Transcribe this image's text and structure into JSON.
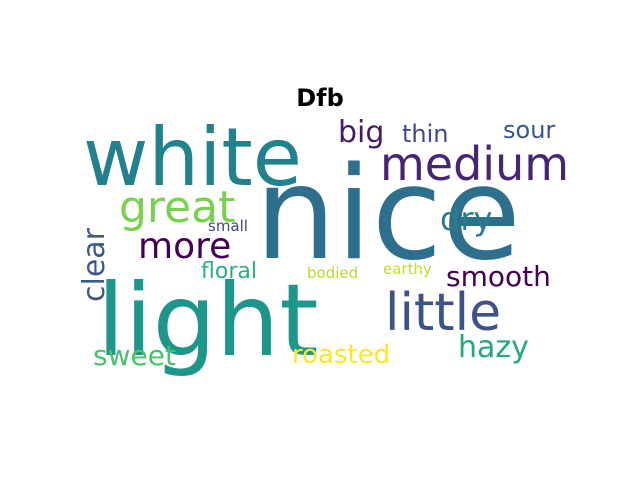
{
  "title": "Dfb",
  "words": [
    {
      "text": "nice",
      "color": "#2e6f8e"
    },
    {
      "text": "white",
      "color": "#21818c"
    },
    {
      "text": "light",
      "color": "#1f968b"
    },
    {
      "text": "medium",
      "color": "#482475"
    },
    {
      "text": "little",
      "color": "#3b528b"
    },
    {
      "text": "great",
      "color": "#7ad151"
    },
    {
      "text": "more",
      "color": "#440154"
    },
    {
      "text": "big",
      "color": "#481a6c"
    },
    {
      "text": "thin",
      "color": "#3e4989"
    },
    {
      "text": "sour",
      "color": "#39568c"
    },
    {
      "text": "dry",
      "color": "#287d8e"
    },
    {
      "text": "clear",
      "color": "#3b5a8c"
    },
    {
      "text": "smooth",
      "color": "#440154"
    },
    {
      "text": "hazy",
      "color": "#26a784"
    },
    {
      "text": "sweet",
      "color": "#4ac16d"
    },
    {
      "text": "roasted",
      "color": "#fde725"
    },
    {
      "text": "floral",
      "color": "#2ab07f"
    },
    {
      "text": "bodied",
      "color": "#b5de2b"
    },
    {
      "text": "earthy",
      "color": "#c2df23"
    },
    {
      "text": "small",
      "color": "#414487"
    }
  ]
}
